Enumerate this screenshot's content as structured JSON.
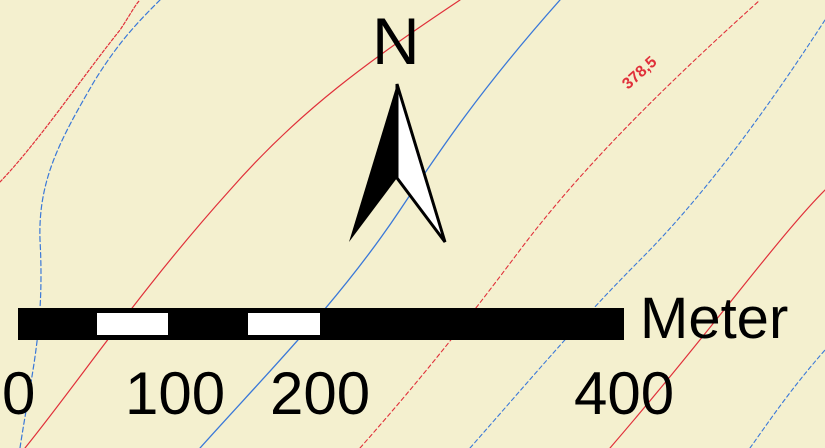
{
  "map": {
    "background_color": "#f4f0cf",
    "contour_red_color": "#e0303a",
    "contour_blue_color": "#3a78d8",
    "contour_label": "378,5"
  },
  "north_arrow": {
    "letter": "N",
    "icon": "north-arrow-icon"
  },
  "scale_bar": {
    "unit": "Meter",
    "ticks": [
      "0",
      "100",
      "200",
      "400"
    ],
    "colors": {
      "dark": "#000000",
      "light": "#ffffff"
    }
  }
}
